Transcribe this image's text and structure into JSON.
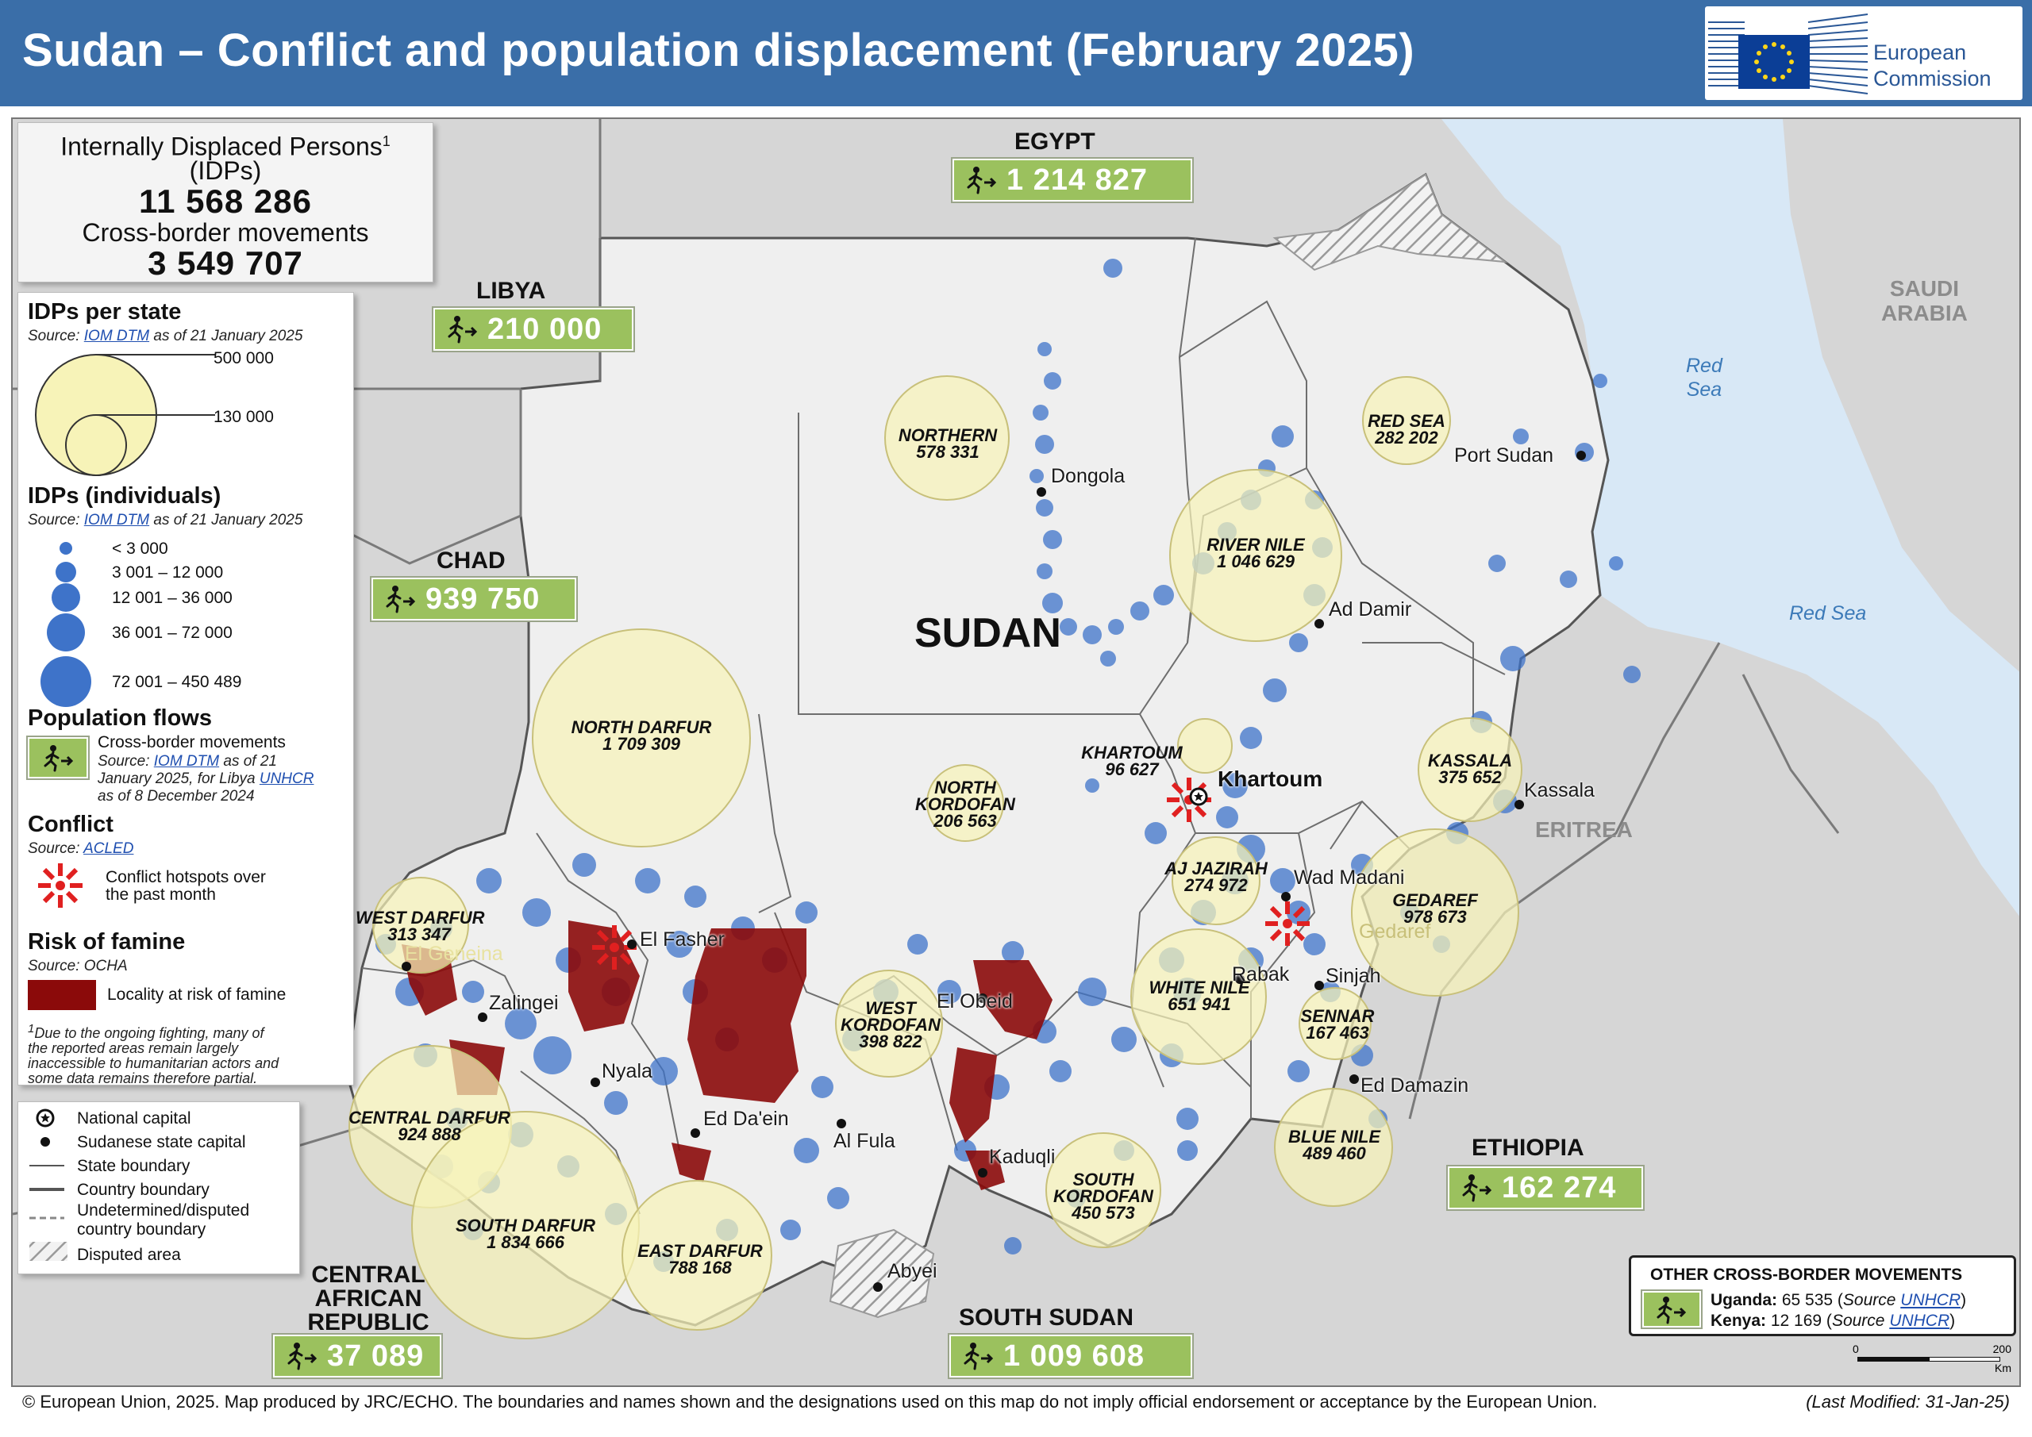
{
  "title": "Sudan – Conflict and population displacement (February 2025)",
  "logo": {
    "line1": "European",
    "line2": "Commission"
  },
  "totals": {
    "idp_label": "Internally Displaced Persons",
    "idp_sup": "1",
    "idp_abbr": "(IDPs)",
    "idp_value": "11 568 286",
    "cross_label": "Cross-border movements",
    "cross_value": "3 549 707"
  },
  "legend": {
    "idps_per_state": {
      "heading": "IDPs per state",
      "source_prefix": "Source: ",
      "source_link": "IOM DTM",
      "source_suffix": " as of 21 January 2025",
      "size_large": "500 000",
      "size_small": "130 000"
    },
    "idps_individuals": {
      "heading": "IDPs (individuals)",
      "source_prefix": "Source: ",
      "source_link": "IOM DTM",
      "source_suffix": " as of 21 January 2025",
      "classes": [
        "< 3 000",
        "3 001 – 12 000",
        "12 001 – 36 000",
        "36 001 – 72 000",
        "72 001 – 450 489"
      ]
    },
    "population_flows": {
      "heading": "Population flows",
      "item": "Cross-border movements",
      "src1_prefix": "Source: ",
      "src1_link": "IOM DTM",
      "src1_suffix": " as of 21",
      "src2_prefix": "January 2025, for Libya ",
      "src2_link": "UNHCR",
      "src3": "as of 8 December 2024"
    },
    "conflict": {
      "heading": "Conflict",
      "source_prefix": "Source: ",
      "source_link": "ACLED",
      "item1": "Conflict hotspots over",
      "item2": "the past month"
    },
    "famine": {
      "heading": "Risk of famine",
      "source": "Source: OCHA",
      "item": "Locality at risk of famine"
    },
    "footnote": {
      "sup": "1",
      "line1": "Due to the ongoing fighting, many of",
      "line2": "the reported areas remain largely",
      "line3": "inaccessible to humanitarian actors and",
      "line4": "some data remains therefore partial."
    },
    "symbols": [
      "National capital",
      "Sudanese state capital",
      "State boundary",
      "Country boundary",
      "Undetermined/disputed",
      "country boundary",
      "Disputed area"
    ]
  },
  "flows": {
    "egypt": {
      "country": "EGYPT",
      "value": "1 214 827"
    },
    "libya": {
      "country": "LIBYA",
      "value": "210 000"
    },
    "chad": {
      "country": "CHAD",
      "value": "939 750"
    },
    "car": {
      "country_l1": "CENTRAL",
      "country_l2": "AFRICAN",
      "country_l3": "REPUBLIC",
      "value": "37 089"
    },
    "south_sudan": {
      "country": "SOUTH SUDAN",
      "value": "1 009 608"
    },
    "ethiopia": {
      "country": "ETHIOPIA",
      "value": "162 274"
    }
  },
  "other_cross_border": {
    "title": "OTHER CROSS-BORDER MOVEMENTS",
    "uganda_label": "Uganda:",
    "uganda_value": " 65 535 (",
    "uganda_src": "Source ",
    "uganda_link": "UNHCR",
    "kenya_label": "Kenya:",
    "kenya_value": " 12 169 (",
    "kenya_src": "Source ",
    "kenya_link": "UNHCR",
    "close": ")"
  },
  "map_labels": {
    "sudan": "SUDAN",
    "saudi_l1": "SAUDI",
    "saudi_l2": "ARABIA",
    "eritrea": "ERITREA",
    "red_sea_l1": "Red",
    "red_sea_l2": "Sea",
    "red_sea_2": "Red Sea",
    "khartoum": "Khartoum",
    "cities": {
      "dongola": "Dongola",
      "port_sudan": "Port Sudan",
      "ad_damir": "Ad Damir",
      "kassala": "Kassala",
      "wad_madani": "Wad Madani",
      "gedaref": "Gedaref",
      "rabak": "Rabak",
      "sinjah": "Sinjah",
      "ed_damazin": "Ed Damazin",
      "el_fasher": "El Fasher",
      "el_geneina": "El Geneina",
      "zalingei": "Zalingei",
      "nyala": "Nyala",
      "ed_daein": "Ed Da'ein",
      "al_fula": "Al Fula",
      "el_obeid": "El Obeid",
      "kaduqli": "Kaduqli",
      "abyei": "Abyei"
    }
  },
  "states": [
    {
      "id": "northern",
      "name": "NORTHERN",
      "value": "578 331",
      "idps": 578331
    },
    {
      "id": "red-sea",
      "name": "RED SEA",
      "value": "282 202",
      "idps": 282202
    },
    {
      "id": "river-nile",
      "name": "RIVER NILE",
      "value": "1 046 629",
      "idps": 1046629
    },
    {
      "id": "khartoum",
      "name": "KHARTOUM",
      "value": "96 627",
      "idps": 96627
    },
    {
      "id": "kassala",
      "name": "KASSALA",
      "value": "375 652",
      "idps": 375652
    },
    {
      "id": "north-darfur",
      "name": "NORTH DARFUR",
      "value": "1 709 309",
      "idps": 1709309
    },
    {
      "id": "north-kordofan",
      "name_l1": "NORTH",
      "name_l2": "KORDOFAN",
      "value": "206 563",
      "idps": 206563
    },
    {
      "id": "aj-jazirah",
      "name": "AJ JAZIRAH",
      "value": "274 972",
      "idps": 274972
    },
    {
      "id": "gedaref",
      "name": "GEDAREF",
      "value": "978 673",
      "idps": 978673
    },
    {
      "id": "west-darfur",
      "name": "WEST DARFUR",
      "value": "313 347",
      "idps": 313347
    },
    {
      "id": "west-kordofan",
      "name_l1": "WEST",
      "name_l2": "KORDOFAN",
      "value": "398 822",
      "idps": 398822
    },
    {
      "id": "white-nile",
      "name": "WHITE NILE",
      "value": "651 941",
      "idps": 651941
    },
    {
      "id": "sennar",
      "name": "SENNAR",
      "value": "167 463",
      "idps": 167463
    },
    {
      "id": "central-darfur",
      "name": "CENTRAL DARFUR",
      "value": "924 888",
      "idps": 924888
    },
    {
      "id": "blue-nile",
      "name": "BLUE NILE",
      "value": "489 460",
      "idps": 489460
    },
    {
      "id": "south-darfur",
      "name": "SOUTH DARFUR",
      "value": "1 834 666",
      "idps": 1834666
    },
    {
      "id": "east-darfur",
      "name": "EAST DARFUR",
      "value": "788 168",
      "idps": 788168
    },
    {
      "id": "south-kordofan",
      "name_l1": "SOUTH",
      "name_l2": "KORDOFAN",
      "value": "450 573",
      "idps": 450573
    }
  ],
  "scale": {
    "min": "0",
    "max": "200",
    "unit": "Km"
  },
  "footer": {
    "text": "© European Union, 2025. Map produced by JRC/ECHO. The boundaries and names shown and the designations used on this map do not imply official endorsement or acceptance by the European Union.",
    "modified": "(Last Modified: 31-Jan-25)"
  },
  "colors": {
    "header": "#3a6ea8",
    "state_bubble": "#f7f3b8",
    "idp_dot": "#3e73c9",
    "famine": "#8b0a0a",
    "hotspot": "#e02020",
    "flow_box": "#9bc15e",
    "sudan_land": "#efefef",
    "neighbour_land": "#d9d9d9",
    "sea": "#d8e8f6"
  }
}
